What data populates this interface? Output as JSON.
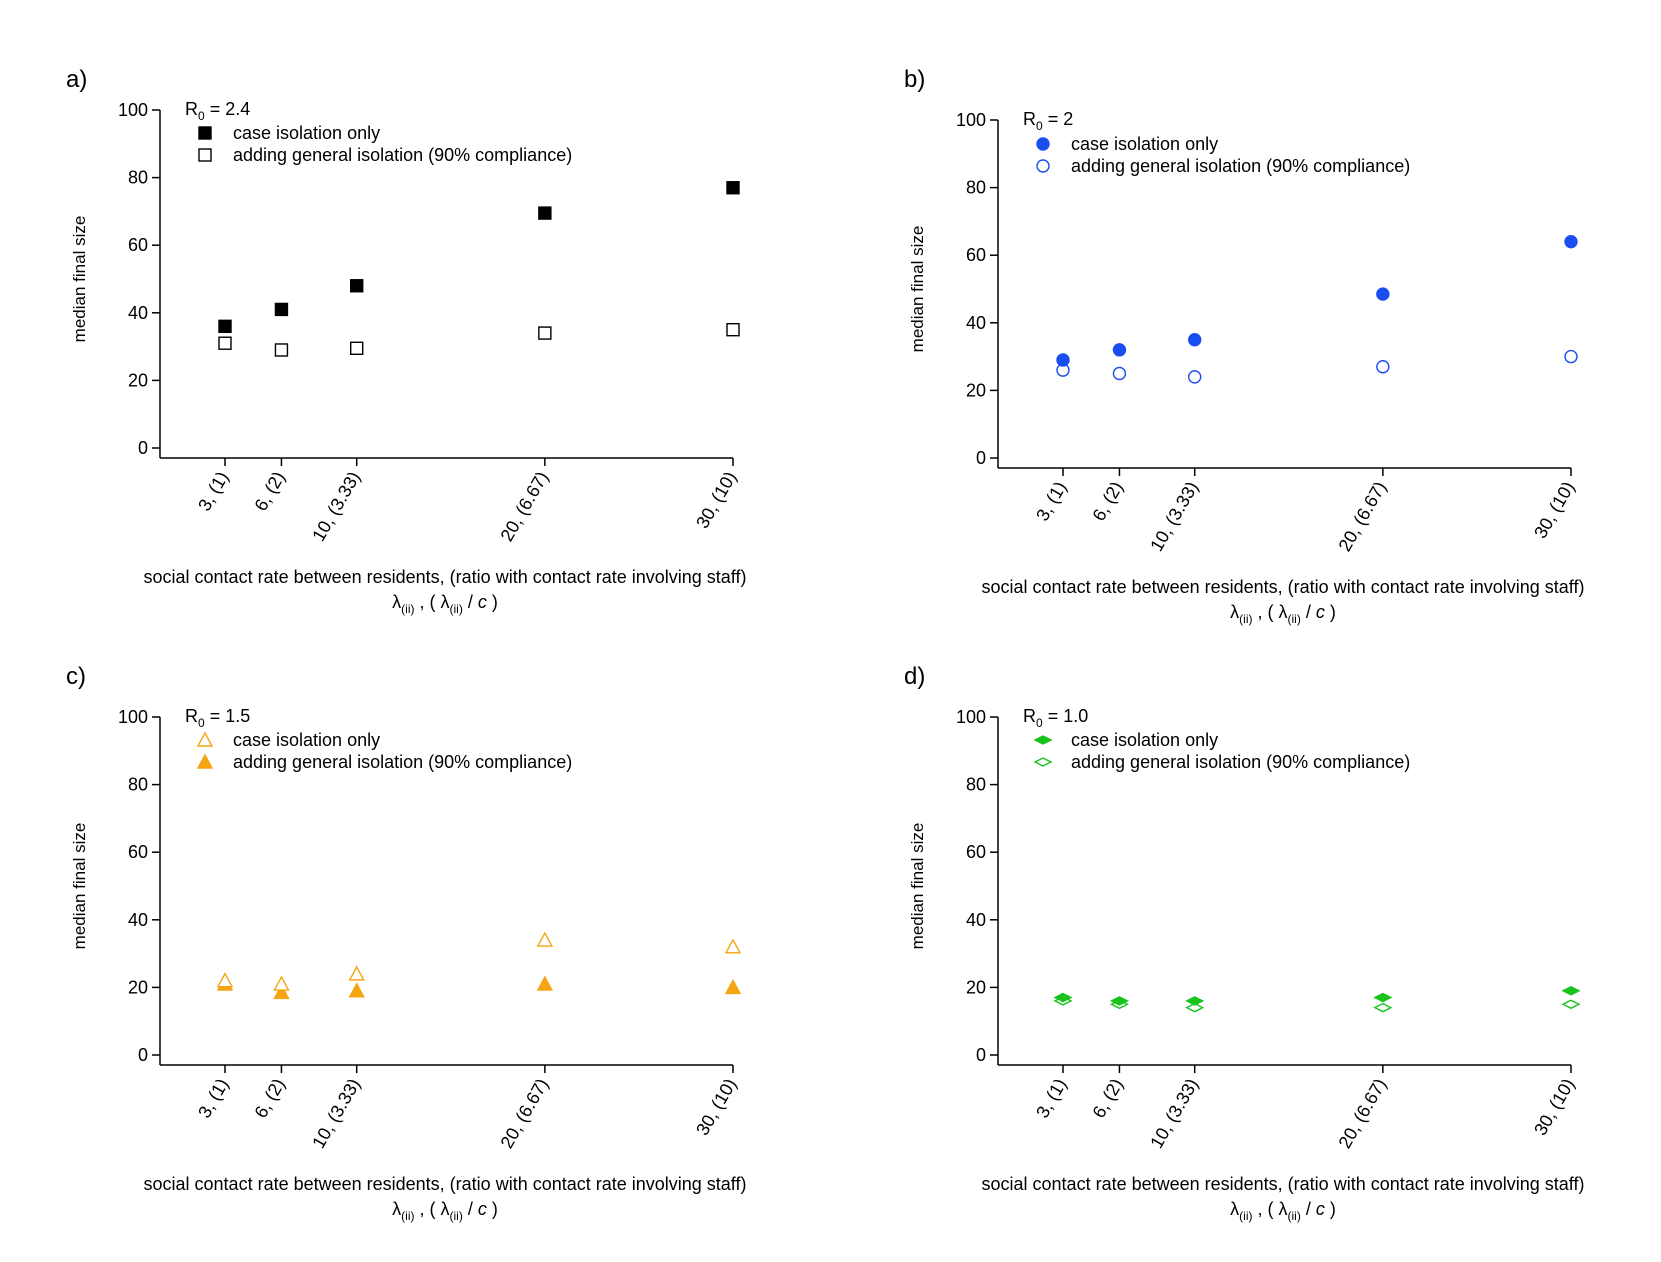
{
  "panels": [
    {
      "label": "a)",
      "r0_prefix": "R",
      "r0_sub": "0",
      "r0_suffix": " = 2.4",
      "ylabel": "median final size",
      "xlabel_line1": "social contact rate between residents, (ratio with contact rate involving staff)",
      "color": "#000000",
      "legend": [
        {
          "text": "case isolation only",
          "marker": "square",
          "fill": true
        },
        {
          "text": "adding general isolation (90% compliance)",
          "marker": "square",
          "fill": false
        }
      ]
    },
    {
      "label": "b)",
      "r0_prefix": "R",
      "r0_sub": "0",
      "r0_suffix": " = 2",
      "ylabel": "median final size",
      "xlabel_line1": "social contact rate between residents, (ratio with contact rate involving staff)",
      "color": "#1a4ef0",
      "legend": [
        {
          "text": "case isolation only",
          "marker": "circle",
          "fill": true
        },
        {
          "text": "adding general isolation (90% compliance)",
          "marker": "circle",
          "fill": false
        }
      ]
    },
    {
      "label": "c)",
      "r0_prefix": "R",
      "r0_sub": "0",
      "r0_suffix": " = 1.5",
      "ylabel": "median final size",
      "xlabel_line1": "social contact rate between residents, (ratio with contact rate involving staff)",
      "color": "#f5a511",
      "legend": [
        {
          "text": "case isolation only",
          "marker": "triangle",
          "fill": false
        },
        {
          "text": "adding general isolation (90% compliance)",
          "marker": "triangle",
          "fill": true
        }
      ]
    },
    {
      "label": "d)",
      "r0_prefix": "R",
      "r0_sub": "0",
      "r0_suffix": " = 1.0",
      "ylabel": "median final size",
      "xlabel_line1": "social contact rate between residents, (ratio with contact rate involving staff)",
      "color": "#19c31c",
      "legend": [
        {
          "text": "case isolation only",
          "marker": "diamond",
          "fill": true
        },
        {
          "text": "adding general isolation (90% compliance)",
          "marker": "diamond",
          "fill": false
        }
      ]
    }
  ],
  "xlabel_line2": {
    "lambda": "λ",
    "sub": "(ii)",
    "sep": " , ( ",
    "lambda2": "λ",
    "sub2": "(ii)",
    "slash": " / ",
    "c": "c",
    "close": " )"
  },
  "chart_data": [
    {
      "type": "scatter",
      "title": "R0 = 2.4",
      "xlabel": "social contact rate between residents, (ratio with contact rate involving staff) λ(ii) , ( λ(ii) / c )",
      "ylabel": "median final size",
      "x": [
        3,
        6,
        10,
        20,
        30
      ],
      "x_tick_labels": [
        "3, (1)",
        "6, (2)",
        "10, (3.33)",
        "20, (6.67)",
        "30, (10)"
      ],
      "ylim": [
        0,
        100
      ],
      "y_ticks": [
        0,
        20,
        40,
        60,
        80,
        100
      ],
      "legend_position": "top-left",
      "series": [
        {
          "name": "case isolation only",
          "values": [
            36,
            41,
            48,
            69.5,
            77
          ]
        },
        {
          "name": "adding general isolation (90% compliance)",
          "values": [
            31,
            29,
            29.5,
            34,
            35
          ]
        }
      ]
    },
    {
      "type": "scatter",
      "title": "R0 = 2",
      "xlabel": "social contact rate between residents, (ratio with contact rate involving staff) λ(ii) , ( λ(ii) / c )",
      "ylabel": "median final size",
      "x": [
        3,
        6,
        10,
        20,
        30
      ],
      "x_tick_labels": [
        "3, (1)",
        "6, (2)",
        "10, (3.33)",
        "20, (6.67)",
        "30, (10)"
      ],
      "ylim": [
        0,
        100
      ],
      "y_ticks": [
        0,
        20,
        40,
        60,
        80,
        100
      ],
      "legend_position": "top-left",
      "series": [
        {
          "name": "case isolation only",
          "values": [
            29,
            32,
            35,
            48.5,
            64
          ]
        },
        {
          "name": "adding general isolation (90% compliance)",
          "values": [
            26,
            25,
            24,
            27,
            30
          ]
        }
      ]
    },
    {
      "type": "scatter",
      "title": "R0 = 1.5",
      "xlabel": "social contact rate between residents, (ratio with contact rate involving staff) λ(ii) , ( λ(ii) / c )",
      "ylabel": "median final size",
      "x": [
        3,
        6,
        10,
        20,
        30
      ],
      "x_tick_labels": [
        "3, (1)",
        "6, (2)",
        "10, (3.33)",
        "20, (6.67)",
        "30, (10)"
      ],
      "ylim": [
        0,
        100
      ],
      "y_ticks": [
        0,
        20,
        40,
        60,
        80,
        100
      ],
      "legend_position": "top-left",
      "series": [
        {
          "name": "case isolation only",
          "values": [
            22,
            21,
            24,
            34,
            32
          ]
        },
        {
          "name": "adding general isolation (90% compliance)",
          "values": [
            21,
            18.5,
            19,
            21,
            20
          ]
        }
      ]
    },
    {
      "type": "scatter",
      "title": "R0 = 1.0",
      "xlabel": "social contact rate between residents, (ratio with contact rate involving staff) λ(ii) , ( λ(ii) / c )",
      "ylabel": "median final size",
      "x": [
        3,
        6,
        10,
        20,
        30
      ],
      "x_tick_labels": [
        "3, (1)",
        "6, (2)",
        "10, (3.33)",
        "20, (6.67)",
        "30, (10)"
      ],
      "ylim": [
        0,
        100
      ],
      "y_ticks": [
        0,
        20,
        40,
        60,
        80,
        100
      ],
      "legend_position": "top-left",
      "series": [
        {
          "name": "case isolation only",
          "values": [
            17,
            16,
            16,
            17,
            19
          ]
        },
        {
          "name": "adding general isolation (90% compliance)",
          "values": [
            16,
            15,
            14,
            14,
            15
          ]
        }
      ]
    }
  ]
}
